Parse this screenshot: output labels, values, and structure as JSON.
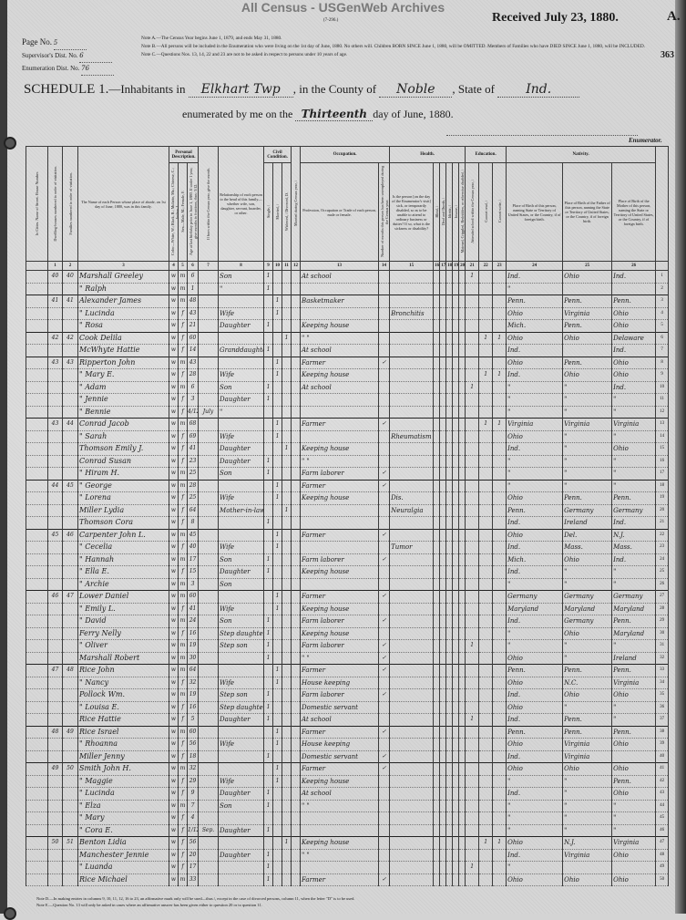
{
  "watermark": "All Census - USGenWeb Archives",
  "form_number": "(7-296.)",
  "received": "Received July 23, 1880.",
  "sheet_letter": "A.",
  "page_stamp": "363",
  "meta": {
    "page_label": "Page No.",
    "page_value": "5",
    "supervisor_label": "Supervisor's Dist. No.",
    "supervisor_value": "6",
    "enumeration_label": "Enumeration Dist. No.",
    "enumeration_value": "76"
  },
  "notes": {
    "a": "Note A.—The Census Year begins June 1, 1879, and ends May 31, 1880.",
    "b": "Note B.—All persons will be included in the Enumeration who were living on the 1st day of June, 1880. No others will. Children BORN SINCE June 1, 1880, will be OMITTED. Members of Families who have DIED SINCE June 1, 1880, will be INCLUDED.",
    "c": "Note C.—Questions Nos. 13, 14, 22 and 23 are not to be asked in respect to persons under 10 years of age.",
    "d": "Note D.—In making entries in columns 9, 10, 11, 12, 16 to 23, an affirmative mark only will be used—thus /, except in the case of divorced persons, column 11, when the letter \"D\" is to be used.",
    "e": "Note E.—Question No. 13 will only be asked in cases where an affirmative answer has been given either to question 20 or to question 11."
  },
  "schedule": {
    "title": "SCHEDULE 1.",
    "inhabitants_label": "—Inhabitants in",
    "township": "Elkhart Twp",
    "county_label": ", in the County of",
    "county": "Noble",
    "state_label": ", State of",
    "state": "Ind.",
    "enumerated_label": "enumerated by me on the",
    "day": "Thirteenth",
    "month_label": "day of June, 1880.",
    "enumerator_label": "Enumerator."
  },
  "column_groups": {
    "personal": "Personal Description.",
    "civil": "Civil Condition.",
    "occupation": "Occupation.",
    "health": "Health.",
    "education": "Education.",
    "nativity": "Nativity."
  },
  "columns": [
    {
      "key": "margin",
      "num": "",
      "label": "In Cities. Name of Street. House Number."
    },
    {
      "key": "dw",
      "num": "1",
      "label": "Dwelling-houses numbered in order of visitation."
    },
    {
      "key": "fam",
      "num": "2",
      "label": "Families numbered in order of visitation."
    },
    {
      "key": "name",
      "num": "3",
      "label": "The Name of each Person whose place of abode, on 1st day of June, 1880, was in this family."
    },
    {
      "key": "color",
      "num": "4",
      "group": "personal",
      "label": "Color—White, W.; Black, B.; Mulatto, Mu.; Chinese, C.; Indian, I."
    },
    {
      "key": "sex",
      "num": "5",
      "group": "personal",
      "label": "Sex—Male, M.; Female, F."
    },
    {
      "key": "age",
      "num": "6",
      "group": "personal",
      "label": "Age at last birthday prior to June 1, 1880. If under 1 year, give months in fractions, thus: 3/12."
    },
    {
      "key": "month",
      "num": "7",
      "label": "If born within the Census year, give the month."
    },
    {
      "key": "rel",
      "num": "8",
      "label": "Relationship of each person to the head of this family—whether wife, son, daughter, servant, boarder, or other."
    },
    {
      "key": "single",
      "num": "9",
      "group": "civil",
      "label": "Single, /"
    },
    {
      "key": "married",
      "num": "10",
      "group": "civil",
      "label": "Married, /"
    },
    {
      "key": "widowed",
      "num": "11",
      "group": "civil",
      "label": "Widowed, / Divorced, D."
    },
    {
      "key": "mcy",
      "num": "12",
      "label": "Married during Census year, /"
    },
    {
      "key": "occ",
      "num": "13",
      "group": "occupation",
      "label": "Profession, Occupation or Trade of each person, male or female."
    },
    {
      "key": "unemp",
      "num": "14",
      "group": "occupation",
      "label": "Number of months this person has been unemployed during the Census year."
    },
    {
      "key": "sick",
      "num": "15",
      "group": "health",
      "label": "Is the person [on the day of the Enumerator's visit] sick, or temporarily disabled, so as to be unable to attend to ordinary business or duties? If so, what is the sickness or disability?"
    },
    {
      "key": "blind",
      "num": "16",
      "group": "health",
      "label": "Blind, /"
    },
    {
      "key": "deaf",
      "num": "17",
      "group": "health",
      "label": "Deaf and Dumb, /"
    },
    {
      "key": "idiot",
      "num": "18",
      "group": "health",
      "label": "Idiotic, /"
    },
    {
      "key": "insane",
      "num": "19",
      "group": "health",
      "label": "Insane, /"
    },
    {
      "key": "maimed",
      "num": "20",
      "group": "health",
      "label": "Maimed, Crippled, Bedridden, or otherwise disabled, /"
    },
    {
      "key": "school",
      "num": "21",
      "group": "education",
      "label": "Attended school within the Census year, /"
    },
    {
      "key": "read",
      "num": "22",
      "group": "education",
      "label": "Cannot read, /"
    },
    {
      "key": "write",
      "num": "23",
      "group": "education",
      "label": "Cannot write, /"
    },
    {
      "key": "bp",
      "num": "24",
      "group": "nativity",
      "label": "Place of Birth of this person, naming State or Territory of United States, or the Country, if of foreign birth."
    },
    {
      "key": "fbp",
      "num": "25",
      "group": "nativity",
      "label": "Place of Birth of the Father of this person, naming the State or Territory of United States, or the Country, if of foreign birth."
    },
    {
      "key": "mbp",
      "num": "26",
      "group": "nativity",
      "label": "Place of Birth of the Mother of this person, naming the State or Territory of United States, or the Country, if of foreign birth."
    },
    {
      "key": "line",
      "num": "",
      "label": ""
    }
  ],
  "rows": [
    {
      "line": "1",
      "dw": "40",
      "fam": "40",
      "name": "Marshall Greeley",
      "color": "w",
      "sex": "m",
      "age": "6",
      "rel": "Son",
      "single": "1",
      "occ": "At school",
      "school": "1",
      "bp": "Ind.",
      "fbp": "Ohio",
      "mbp": "Ind."
    },
    {
      "line": "2",
      "name": "\" Ralph",
      "color": "w",
      "sex": "m",
      "age": "1",
      "rel": "\"",
      "single": "1",
      "bp": "\""
    },
    {
      "line": "3",
      "dw": "41",
      "fam": "41",
      "name": "Alexander James",
      "color": "w",
      "sex": "m",
      "age": "48",
      "married": "1",
      "occ": "Basketmaker",
      "bp": "Penn.",
      "fbp": "Penn.",
      "mbp": "Penn."
    },
    {
      "line": "4",
      "name": "\" Lucinda",
      "color": "w",
      "sex": "f",
      "age": "43",
      "rel": "Wife",
      "married": "1",
      "sick": "Bronchitis",
      "bp": "Ohio",
      "fbp": "Virginia",
      "mbp": "Ohio"
    },
    {
      "line": "5",
      "name": "\" Rosa",
      "color": "w",
      "sex": "f",
      "age": "21",
      "rel": "Daughter",
      "single": "1",
      "occ": "Keeping house",
      "bp": "Mich.",
      "fbp": "Penn.",
      "mbp": "Ohio"
    },
    {
      "line": "6",
      "dw": "42",
      "fam": "42",
      "name": "Cook Delila",
      "color": "w",
      "sex": "f",
      "age": "60",
      "widowed": "1",
      "occ": "\" \"",
      "read": "1",
      "write": "1",
      "bp": "Ohio",
      "fbp": "Ohio",
      "mbp": "Delaware"
    },
    {
      "line": "7",
      "name": "McWhyte Hattie",
      "color": "w",
      "sex": "f",
      "age": "14",
      "rel": "Granddaughter",
      "single": "1",
      "occ": "At school",
      "bp": "Ind.",
      "mbp": "Ind."
    },
    {
      "line": "8",
      "dw": "43",
      "fam": "43",
      "name": "Ripperton John",
      "color": "w",
      "sex": "m",
      "age": "43",
      "married": "1",
      "occ": "Farmer",
      "unemp": "✓",
      "bp": "Ohio",
      "fbp": "Penn.",
      "mbp": "Ohio"
    },
    {
      "line": "9",
      "name": "\" Mary E.",
      "color": "w",
      "sex": "f",
      "age": "28",
      "rel": "Wife",
      "married": "1",
      "occ": "Keeping house",
      "read": "1",
      "write": "1",
      "bp": "Ind.",
      "fbp": "Ohio",
      "mbp": "Ohio"
    },
    {
      "line": "10",
      "name": "\" Adam",
      "color": "w",
      "sex": "m",
      "age": "6",
      "rel": "Son",
      "single": "1",
      "occ": "At school",
      "school": "1",
      "bp": "\"",
      "fbp": "\"",
      "mbp": "Ind."
    },
    {
      "line": "11",
      "name": "\" Jennie",
      "color": "w",
      "sex": "f",
      "age": "3",
      "rel": "Daughter",
      "single": "1",
      "bp": "\"",
      "fbp": "\"",
      "mbp": "\""
    },
    {
      "line": "12",
      "name": "\" Bennie",
      "color": "w",
      "sex": "f",
      "age": "4/12",
      "month": "July",
      "rel": "\"",
      "bp": "\"",
      "fbp": "\"",
      "mbp": "\""
    },
    {
      "line": "13",
      "dw": "43",
      "fam": "44",
      "name": "Conrad Jacob",
      "color": "w",
      "sex": "m",
      "age": "68",
      "married": "1",
      "occ": "Farmer",
      "unemp": "✓",
      "read": "1",
      "write": "1",
      "bp": "Virginia",
      "fbp": "Virginia",
      "mbp": "Virginia"
    },
    {
      "line": "14",
      "name": "\" Sarah",
      "color": "w",
      "sex": "f",
      "age": "69",
      "rel": "Wife",
      "married": "1",
      "sick": "Rheumatism",
      "bp": "Ohio",
      "fbp": "\"",
      "mbp": "\""
    },
    {
      "line": "15",
      "name": "Thomson Emily J.",
      "color": "w",
      "sex": "f",
      "age": "41",
      "rel": "Daughter",
      "widowed": "1",
      "occ": "Keeping house",
      "bp": "Ind.",
      "fbp": "\"",
      "mbp": "Ohio"
    },
    {
      "line": "16",
      "name": "Conrad Susan",
      "color": "w",
      "sex": "f",
      "age": "23",
      "rel": "Daughter",
      "single": "1",
      "occ": "\" \"",
      "bp": "\"",
      "fbp": "\"",
      "mbp": "\""
    },
    {
      "line": "17",
      "name": "\" Hiram H.",
      "color": "w",
      "sex": "m",
      "age": "25",
      "rel": "Son",
      "single": "1",
      "occ": "Farm laborer",
      "unemp": "✓",
      "bp": "\"",
      "fbp": "\"",
      "mbp": "\""
    },
    {
      "line": "18",
      "dw": "44",
      "fam": "45",
      "name": "\" George",
      "color": "w",
      "sex": "m",
      "age": "28",
      "married": "1",
      "occ": "Farmer",
      "unemp": "✓",
      "bp": "\"",
      "fbp": "\"",
      "mbp": "\""
    },
    {
      "line": "19",
      "name": "\" Lorena",
      "color": "w",
      "sex": "f",
      "age": "25",
      "rel": "Wife",
      "married": "1",
      "occ": "Keeping house",
      "sick": "Dis.",
      "bp": "Ohio",
      "fbp": "Penn.",
      "mbp": "Penn."
    },
    {
      "line": "20",
      "name": "Miller Lydia",
      "color": "w",
      "sex": "f",
      "age": "64",
      "rel": "Mother-in-law",
      "widowed": "1",
      "sick": "Neuralgia",
      "bp": "Penn.",
      "fbp": "Germany",
      "mbp": "Germany"
    },
    {
      "line": "21",
      "name": "Thomson Cora",
      "color": "w",
      "sex": "f",
      "age": "8",
      "single": "1",
      "bp": "Ind.",
      "fbp": "Ireland",
      "mbp": "Ind."
    },
    {
      "line": "22",
      "dw": "45",
      "fam": "46",
      "name": "Carpenter John L.",
      "color": "w",
      "sex": "m",
      "age": "45",
      "married": "1",
      "occ": "Farmer",
      "unemp": "✓",
      "bp": "Ohio",
      "fbp": "Del.",
      "mbp": "N.J."
    },
    {
      "line": "23",
      "name": "\" Cecelia",
      "color": "w",
      "sex": "f",
      "age": "40",
      "rel": "Wife",
      "married": "1",
      "sick": "Tumor",
      "bp": "Ind.",
      "fbp": "Mass.",
      "mbp": "Mass."
    },
    {
      "line": "24",
      "name": "\" Hannah",
      "color": "w",
      "sex": "m",
      "age": "17",
      "rel": "Son",
      "single": "1",
      "occ": "Farm laborer",
      "unemp": "✓",
      "bp": "Mich.",
      "fbp": "Ohio",
      "mbp": "Ind."
    },
    {
      "line": "25",
      "name": "\" Ella E.",
      "color": "w",
      "sex": "f",
      "age": "15",
      "rel": "Daughter",
      "single": "1",
      "occ": "Keeping house",
      "bp": "Ind.",
      "fbp": "\"",
      "mbp": "\""
    },
    {
      "line": "26",
      "name": "\" Archie",
      "color": "w",
      "sex": "m",
      "age": "3",
      "rel": "Son",
      "bp": "\"",
      "fbp": "\"",
      "mbp": "\""
    },
    {
      "line": "27",
      "dw": "46",
      "fam": "47",
      "name": "Lower Daniel",
      "color": "w",
      "sex": "m",
      "age": "60",
      "married": "1",
      "occ": "Farmer",
      "unemp": "✓",
      "bp": "Germany",
      "fbp": "Germany",
      "mbp": "Germany"
    },
    {
      "line": "28",
      "name": "\" Emily L.",
      "color": "w",
      "sex": "f",
      "age": "41",
      "rel": "Wife",
      "married": "1",
      "occ": "Keeping house",
      "bp": "Maryland",
      "fbp": "Maryland",
      "mbp": "Maryland"
    },
    {
      "line": "29",
      "name": "\" David",
      "color": "w",
      "sex": "m",
      "age": "24",
      "rel": "Son",
      "single": "1",
      "occ": "Farm laborer",
      "unemp": "✓",
      "bp": "Ind.",
      "fbp": "Germany",
      "mbp": "Penn."
    },
    {
      "line": "30",
      "name": "Ferry Nelly",
      "color": "w",
      "sex": "f",
      "age": "16",
      "rel": "Step daughter",
      "single": "1",
      "occ": "Keeping house",
      "bp": "\"",
      "fbp": "Ohio",
      "mbp": "Maryland"
    },
    {
      "line": "31",
      "name": "\" Oliver",
      "color": "w",
      "sex": "m",
      "age": "19",
      "rel": "Step son",
      "single": "1",
      "occ": "Farm laborer",
      "unemp": "✓",
      "school": "1",
      "bp": "\"",
      "fbp": "\"",
      "mbp": "\""
    },
    {
      "line": "32",
      "name": "Marshall Robert",
      "color": "w",
      "sex": "m",
      "age": "30",
      "single": "1",
      "occ": "\" \"",
      "unemp": "✓",
      "bp": "Ohio",
      "fbp": "\"",
      "mbp": "Ireland"
    },
    {
      "line": "33",
      "dw": "47",
      "fam": "48",
      "name": "Rice John",
      "color": "w",
      "sex": "m",
      "age": "64",
      "married": "1",
      "occ": "Farmer",
      "unemp": "✓",
      "bp": "Penn.",
      "fbp": "Penn.",
      "mbp": "Penn."
    },
    {
      "line": "34",
      "name": "\" Nancy",
      "color": "w",
      "sex": "f",
      "age": "32",
      "rel": "Wife",
      "married": "1",
      "occ": "House keeping",
      "bp": "Ohio",
      "fbp": "N.C.",
      "mbp": "Virginia"
    },
    {
      "line": "35",
      "name": "Pollock Wm.",
      "color": "w",
      "sex": "m",
      "age": "19",
      "rel": "Step son",
      "single": "1",
      "occ": "Farm laborer",
      "unemp": "✓",
      "bp": "Ind.",
      "fbp": "Ohio",
      "mbp": "Ohio"
    },
    {
      "line": "36",
      "name": "\" Louisa E.",
      "color": "w",
      "sex": "f",
      "age": "16",
      "rel": "Step daughter",
      "single": "1",
      "occ": "Domestic servant",
      "bp": "Ohio",
      "fbp": "\"",
      "mbp": "\""
    },
    {
      "line": "37",
      "name": "Rice Hattie",
      "color": "w",
      "sex": "f",
      "age": "5",
      "rel": "Daughter",
      "single": "1",
      "occ": "At school",
      "school": "1",
      "bp": "Ind.",
      "fbp": "Penn.",
      "mbp": "\""
    },
    {
      "line": "38",
      "dw": "48",
      "fam": "49",
      "name": "Rice Israel",
      "color": "w",
      "sex": "m",
      "age": "60",
      "married": "1",
      "occ": "Farmer",
      "unemp": "✓",
      "bp": "Penn.",
      "fbp": "Penn.",
      "mbp": "Penn."
    },
    {
      "line": "39",
      "name": "\" Rhoanna",
      "color": "w",
      "sex": "f",
      "age": "56",
      "rel": "Wife",
      "married": "1",
      "occ": "House keeping",
      "bp": "Ohio",
      "fbp": "Virginia",
      "mbp": "Ohio"
    },
    {
      "line": "40",
      "name": "Miller Jenny",
      "color": "w",
      "sex": "f",
      "age": "18",
      "single": "1",
      "occ": "Domestic servant",
      "unemp": "✓",
      "bp": "Ind.",
      "fbp": "Virginia"
    },
    {
      "line": "41",
      "dw": "49",
      "fam": "50",
      "name": "Smith John H.",
      "color": "w",
      "sex": "m",
      "age": "32",
      "married": "1",
      "occ": "Farmer",
      "unemp": "✓",
      "bp": "Ohio",
      "fbp": "Ohio",
      "mbp": "Ohio"
    },
    {
      "line": "42",
      "name": "\" Maggie",
      "color": "w",
      "sex": "f",
      "age": "29",
      "rel": "Wife",
      "married": "1",
      "occ": "Keeping house",
      "bp": "\"",
      "fbp": "\"",
      "mbp": "Penn."
    },
    {
      "line": "43",
      "name": "\" Lucinda",
      "color": "w",
      "sex": "f",
      "age": "9",
      "rel": "Daughter",
      "single": "1",
      "occ": "At school",
      "bp": "Ind.",
      "fbp": "\"",
      "mbp": "Ohio"
    },
    {
      "line": "44",
      "name": "\" Elza",
      "color": "w",
      "sex": "m",
      "age": "7",
      "rel": "Son",
      "single": "1",
      "occ": "\" \"",
      "bp": "\"",
      "fbp": "\"",
      "mbp": "\""
    },
    {
      "line": "45",
      "name": "\" Mary",
      "color": "w",
      "sex": "f",
      "age": "4",
      "bp": "\"",
      "fbp": "\"",
      "mbp": "\""
    },
    {
      "line": "46",
      "name": "\" Cora E.",
      "color": "w",
      "sex": "f",
      "age": "1/12",
      "month": "Sep.",
      "rel": "Daughter",
      "single": "1",
      "bp": "\"",
      "fbp": "\"",
      "mbp": "\""
    },
    {
      "line": "47",
      "dw": "50",
      "fam": "51",
      "name": "Benton Lidia",
      "color": "w",
      "sex": "f",
      "age": "56",
      "widowed": "1",
      "occ": "Keeping house",
      "read": "1",
      "write": "1",
      "bp": "Ohio",
      "fbp": "N.J.",
      "mbp": "Virginia"
    },
    {
      "line": "48",
      "name": "Manchester Jennie",
      "color": "w",
      "sex": "f",
      "age": "20",
      "rel": "Daughter",
      "single": "1",
      "occ": "\" \"",
      "bp": "Ind.",
      "fbp": "Virginia",
      "mbp": "Ohio"
    },
    {
      "line": "49",
      "name": "\" Luanda",
      "color": "w",
      "sex": "f",
      "age": "17",
      "single": "1",
      "school": "1",
      "bp": "\""
    },
    {
      "line": "50",
      "name": "Rice Michael",
      "color": "w",
      "sex": "m",
      "age": "33",
      "single": "1",
      "occ": "Farmer",
      "unemp": "✓",
      "bp": "Ohio",
      "fbp": "Ohio",
      "mbp": "Ohio"
    }
  ]
}
